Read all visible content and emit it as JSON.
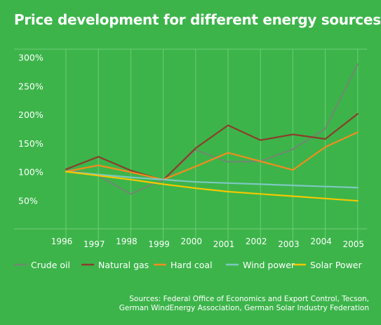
{
  "chart_data": {
    "type": "line",
    "title": "Price development for different energy sources",
    "x": [
      "1996",
      "1997",
      "1998",
      "1999",
      "2000",
      "2001",
      "2002",
      "2003",
      "2004",
      "2005"
    ],
    "y_ticks": [
      "50%",
      "100%",
      "150%",
      "200%",
      "250%",
      "300%"
    ],
    "ylim": [
      0,
      300
    ],
    "grid": "vertical",
    "legend_position": "bottom",
    "series": [
      {
        "name": "Crude oil",
        "color": "#6e8a6e",
        "values": [
          104,
          93,
          61,
          86,
          138,
          117,
          118,
          139,
          175,
          288
        ]
      },
      {
        "name": "Natural gas",
        "color": "#8a3f2a",
        "values": [
          104,
          126,
          102,
          85,
          141,
          181,
          155,
          165,
          157,
          201
        ]
      },
      {
        "name": "Hard coal",
        "color": "#f28c1e",
        "values": [
          100,
          111,
          99,
          86,
          109,
          133,
          118,
          103,
          143,
          169
        ]
      },
      {
        "name": "Wind power",
        "color": "#7ec8c0",
        "values": [
          100,
          95,
          90,
          86,
          82,
          80,
          78,
          76,
          74,
          72
        ]
      },
      {
        "name": "Solar Power",
        "color": "#f3c800",
        "values": [
          100,
          93,
          86,
          78,
          71,
          65,
          61,
          57,
          53,
          49
        ]
      }
    ]
  },
  "sources": {
    "line1": "Sources: Federal Office of Economics and Export Control, Tecson,",
    "line2": "German WindEnergy Association, German Solar Industry Federation"
  }
}
